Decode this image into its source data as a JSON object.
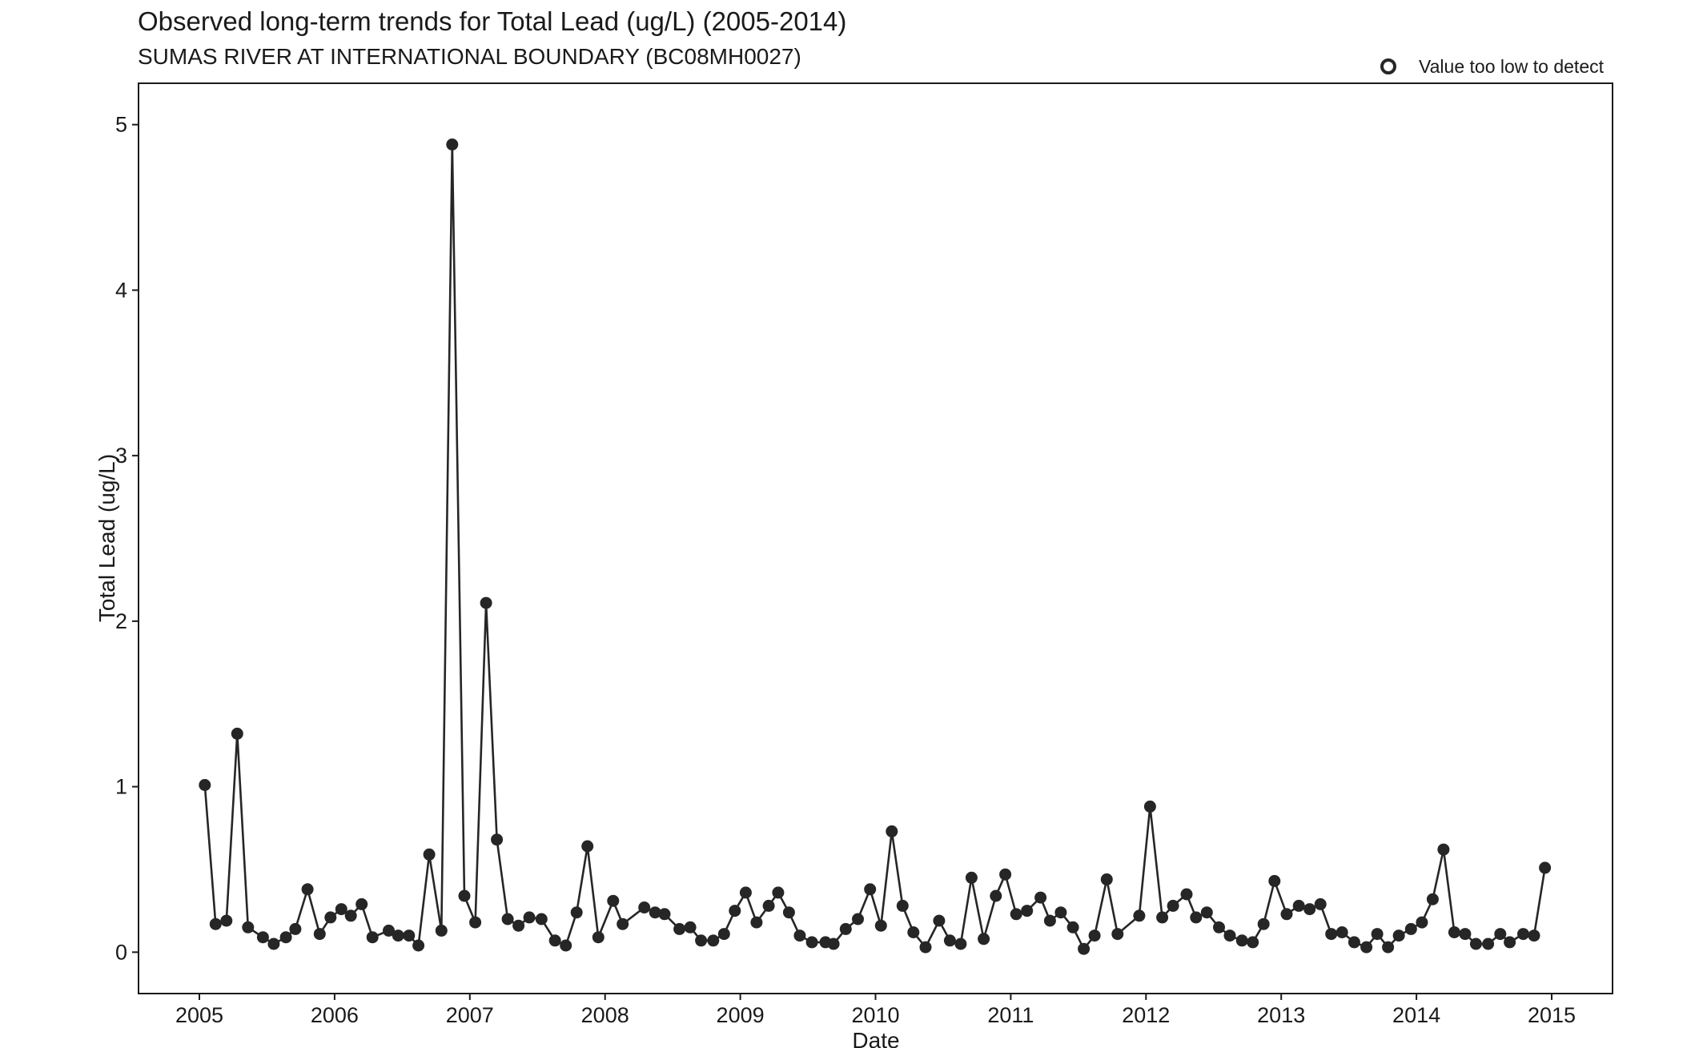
{
  "chart_data": {
    "type": "line",
    "title": "Observed long-term trends for Total Lead (ug/L) (2005-2014)",
    "subtitle": "SUMAS RIVER AT INTERNATIONAL BOUNDARY (BC08MH0027)",
    "xlabel": "Date",
    "ylabel": "Total Lead (ug/L)",
    "xlim": [
      2004.55,
      2015.45
    ],
    "ylim": [
      -0.25,
      5.25
    ],
    "x_ticks": [
      "2005",
      "2006",
      "2007",
      "2008",
      "2009",
      "2010",
      "2011",
      "2012",
      "2013",
      "2014",
      "2015"
    ],
    "y_ticks": [
      "0",
      "1",
      "2",
      "3",
      "4",
      "5"
    ],
    "grid": false,
    "legend": {
      "position": "top-right",
      "entries": [
        {
          "label": "Value too low to detect",
          "marker": "open-circle"
        }
      ]
    },
    "colors": {
      "line": "#262626",
      "marker": "#262626",
      "frame": "#1a1a1a"
    },
    "series": [
      {
        "x": [
          2005.04,
          2005.12,
          2005.2,
          2005.28,
          2005.36,
          2005.47,
          2005.55,
          2005.64,
          2005.71,
          2005.8,
          2005.89,
          2005.97,
          2006.05,
          2006.12,
          2006.2,
          2006.28,
          2006.4,
          2006.47,
          2006.55,
          2006.62,
          2006.7,
          2006.79,
          2006.87,
          2006.96,
          2007.04,
          2007.12,
          2007.2,
          2007.28,
          2007.36,
          2007.44,
          2007.53,
          2007.63,
          2007.71,
          2007.79,
          2007.87,
          2007.95,
          2008.06,
          2008.13,
          2008.29,
          2008.37,
          2008.44,
          2008.55,
          2008.63,
          2008.71,
          2008.8,
          2008.88,
          2008.96,
          2009.04,
          2009.12,
          2009.21,
          2009.28,
          2009.36,
          2009.44,
          2009.53,
          2009.63,
          2009.69,
          2009.78,
          2009.87,
          2009.96,
          2010.04,
          2010.12,
          2010.2,
          2010.28,
          2010.37,
          2010.47,
          2010.55,
          2010.63,
          2010.71,
          2010.8,
          2010.89,
          2010.96,
          2011.04,
          2011.12,
          2011.22,
          2011.29,
          2011.37,
          2011.46,
          2011.54,
          2011.62,
          2011.71,
          2011.79,
          2011.95,
          2012.03,
          2012.12,
          2012.2,
          2012.3,
          2012.37,
          2012.45,
          2012.54,
          2012.62,
          2012.71,
          2012.79,
          2012.87,
          2012.95,
          2013.04,
          2013.13,
          2013.21,
          2013.29,
          2013.37,
          2013.45,
          2013.54,
          2013.63,
          2013.71,
          2013.79,
          2013.87,
          2013.96,
          2014.04,
          2014.12,
          2014.2,
          2014.28,
          2014.36,
          2014.44,
          2014.53,
          2014.62,
          2014.69,
          2014.79,
          2014.87,
          2014.95
        ],
        "y": [
          1.01,
          0.17,
          0.19,
          1.32,
          0.15,
          0.09,
          0.05,
          0.09,
          0.14,
          0.38,
          0.11,
          0.21,
          0.26,
          0.22,
          0.29,
          0.09,
          0.13,
          0.1,
          0.1,
          0.04,
          0.59,
          0.13,
          4.88,
          0.34,
          0.18,
          2.11,
          0.68,
          0.2,
          0.16,
          0.21,
          0.2,
          0.07,
          0.04,
          0.24,
          0.64,
          0.09,
          0.31,
          0.17,
          0.27,
          0.24,
          0.23,
          0.14,
          0.15,
          0.07,
          0.07,
          0.11,
          0.25,
          0.36,
          0.18,
          0.28,
          0.36,
          0.24,
          0.1,
          0.06,
          0.06,
          0.05,
          0.14,
          0.2,
          0.38,
          0.16,
          0.73,
          0.28,
          0.12,
          0.03,
          0.19,
          0.07,
          0.05,
          0.45,
          0.08,
          0.34,
          0.47,
          0.23,
          0.25,
          0.33,
          0.19,
          0.24,
          0.15,
          0.02,
          0.1,
          0.44,
          0.11,
          0.22,
          0.88,
          0.21,
          0.28,
          0.35,
          0.21,
          0.24,
          0.15,
          0.1,
          0.07,
          0.06,
          0.17,
          0.43,
          0.23,
          0.28,
          0.26,
          0.29,
          0.11,
          0.12,
          0.06,
          0.03,
          0.11,
          0.03,
          0.1,
          0.14,
          0.18,
          0.32,
          0.62,
          0.12,
          0.11,
          0.05,
          0.05,
          0.11,
          0.06,
          0.11,
          0.1,
          0.51
        ]
      }
    ]
  }
}
